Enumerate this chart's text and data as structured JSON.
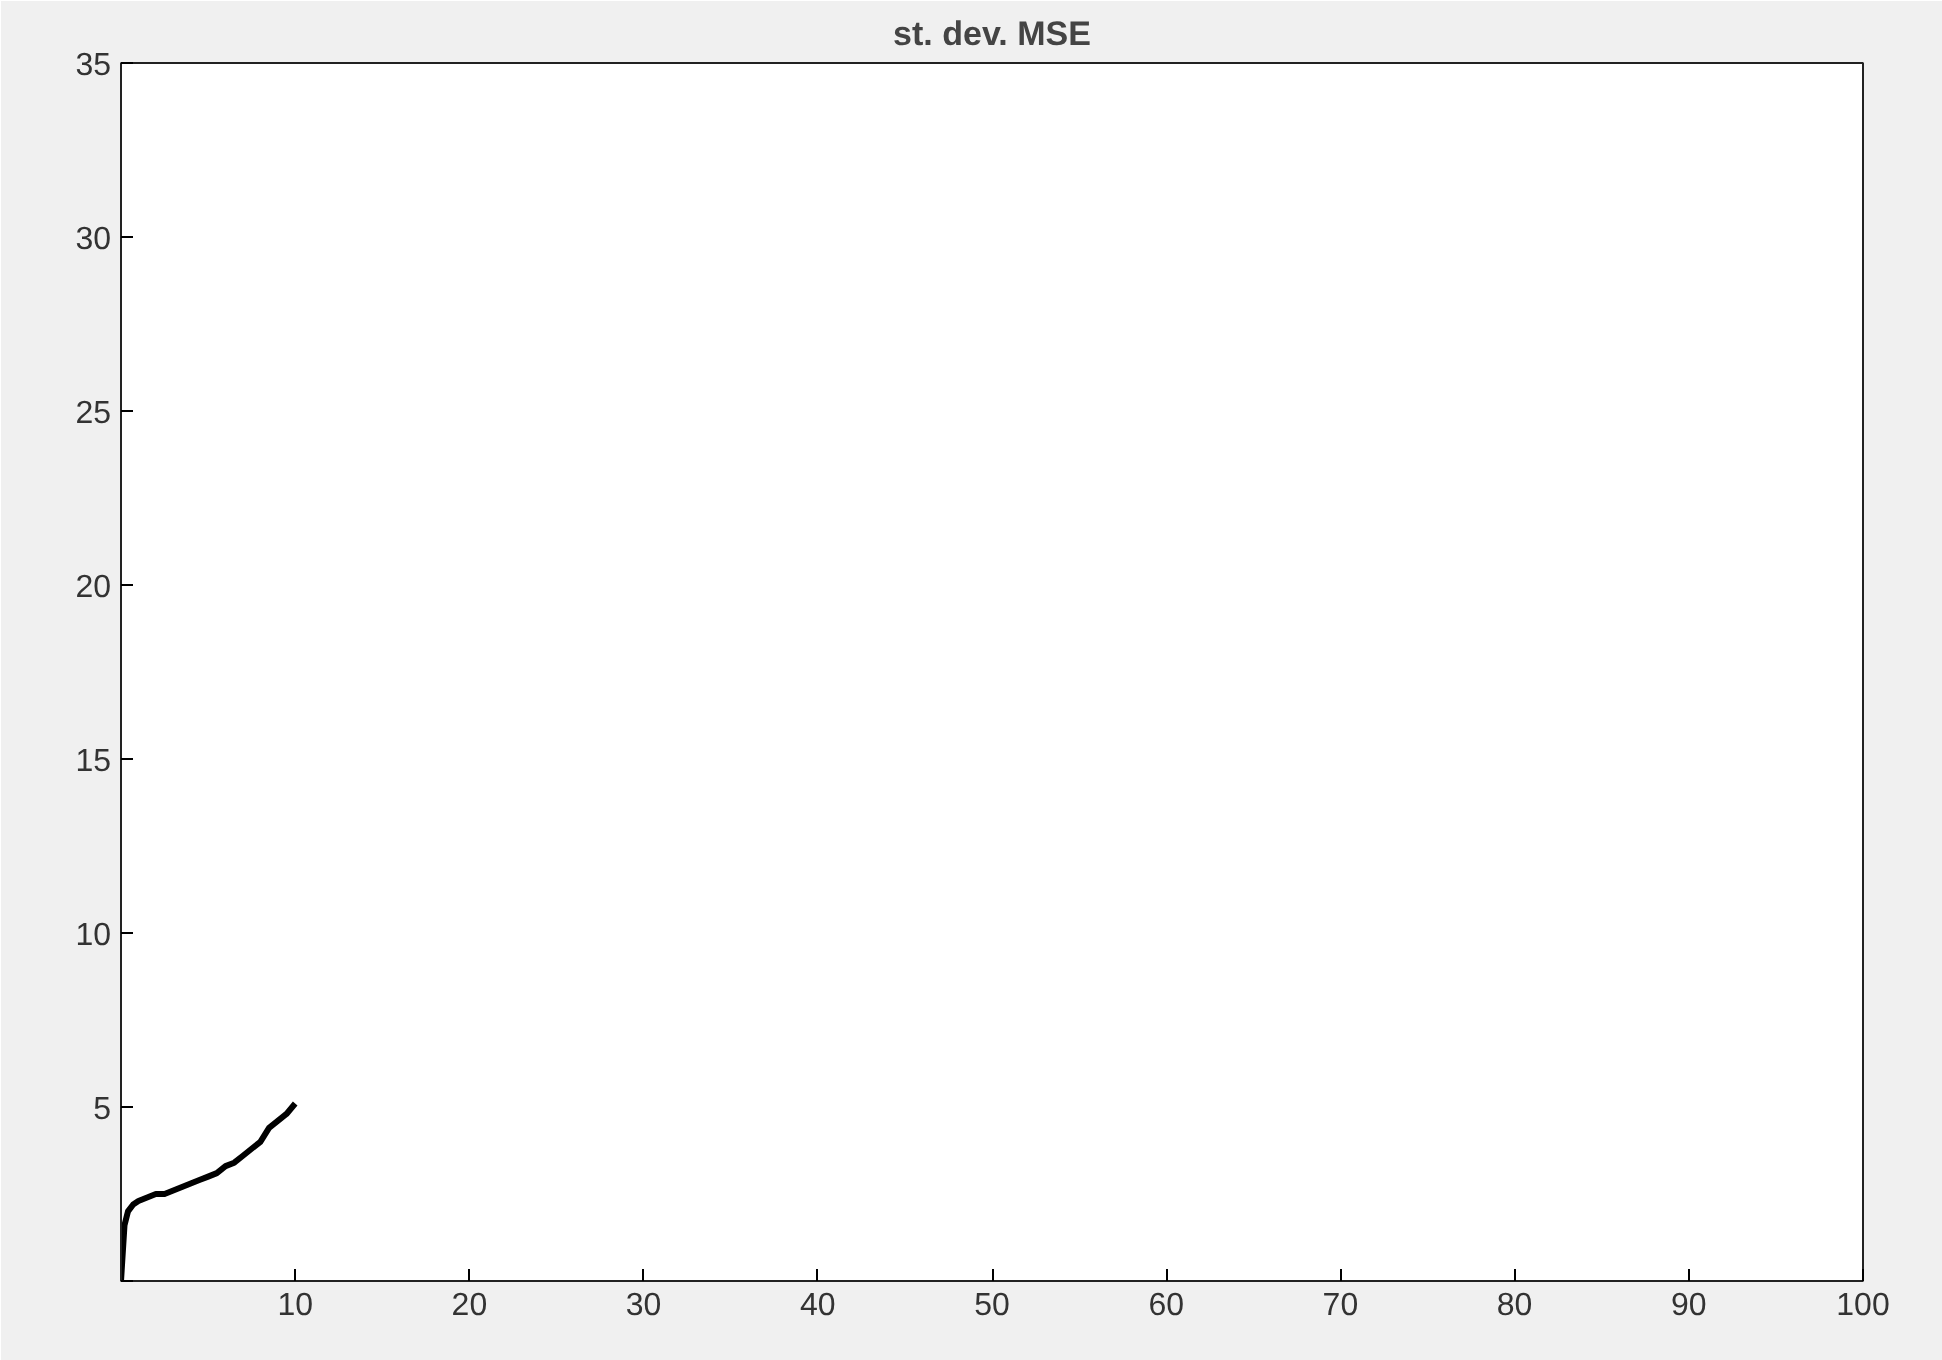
{
  "chart_data": {
    "type": "line",
    "title": "st. dev. MSE",
    "x": [
      0,
      0.2,
      0.4,
      0.7,
      1,
      1.5,
      2,
      2.5,
      3,
      3.5,
      4,
      4.5,
      5,
      5.5,
      6,
      6.5,
      7,
      7.5,
      8,
      8.5,
      9,
      9.5,
      10
    ],
    "series": [
      {
        "color": "#000000",
        "values": [
          0,
          1.6,
          2.0,
          2.2,
          2.3,
          2.4,
          2.5,
          2.5,
          2.6,
          2.7,
          2.8,
          2.9,
          3.0,
          3.1,
          3.3,
          3.4,
          3.6,
          3.8,
          4.0,
          4.4,
          4.6,
          4.8,
          5.1
        ]
      }
    ],
    "xlim": [
      0,
      100
    ],
    "xticks": [
      {
        "value": 0,
        "label": null
      },
      10,
      20,
      30,
      40,
      50,
      60,
      70,
      80,
      90,
      100
    ],
    "ylim": [
      0,
      35
    ],
    "yticks": [
      {
        "value": 0,
        "label": null
      },
      5,
      10,
      15,
      20,
      25,
      30,
      35
    ],
    "marker": "none",
    "line_style": "solid"
  }
}
